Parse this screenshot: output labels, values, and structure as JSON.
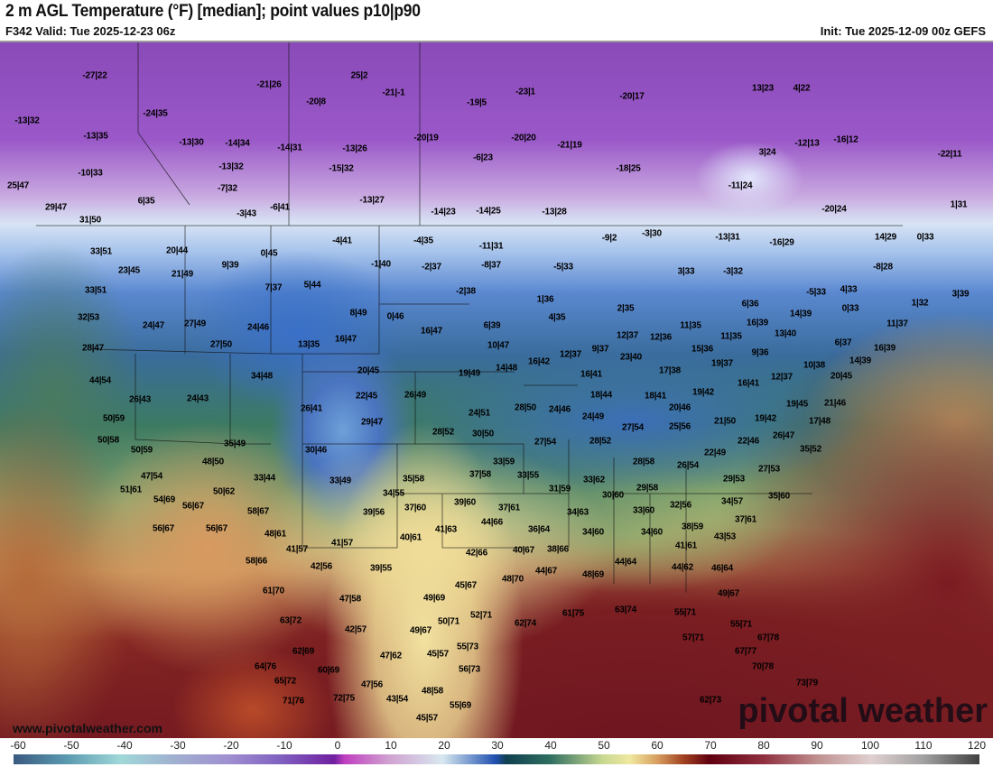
{
  "header": {
    "title": "2 m AGL Temperature (°F) [median]; point values p10|p90",
    "valid": "F342 Valid: Tue 2025-12-23 06z",
    "init": "Init: Tue 2025-12-09 00z GEFS"
  },
  "branding": {
    "url": "www.pivotalweather.com",
    "watermark": "pivotal weather"
  },
  "colorbar": {
    "ticks": [
      "-60",
      "-50",
      "-40",
      "-30",
      "-20",
      "-10",
      "0",
      "10",
      "20",
      "30",
      "40",
      "50",
      "60",
      "70",
      "80",
      "90",
      "100",
      "110",
      "120"
    ]
  },
  "map": {
    "point_values": [
      "-27|22",
      "25|2",
      "-21|26",
      "-21|-1",
      "-23|1",
      "-20|17",
      "13|23",
      "4|22",
      "-20|8",
      "-19|5",
      "-13|32",
      "-24|35",
      "-13|35",
      "-13|30",
      "-14|34",
      "-14|31",
      "-13|26",
      "-20|19",
      "-20|20",
      "-21|19",
      "-12|13",
      "-16|12",
      "-6|23",
      "3|24",
      "-22|11",
      "-10|33",
      "-13|32",
      "-15|32",
      "-18|25",
      "25|47",
      "-7|32",
      "-13|27",
      "-11|24",
      "6|35",
      "29|47",
      "-3|43",
      "-6|41",
      "-14|23",
      "-14|25",
      "-13|28",
      "-20|24",
      "1|31",
      "31|50",
      "-4|41",
      "-4|35",
      "-9|2",
      "-3|30",
      "-13|31",
      "-16|29",
      "14|29",
      "0|33",
      "33|51",
      "20|44",
      "0|45",
      "-11|31",
      "9|39",
      "-1|40",
      "-2|37",
      "-8|37",
      "-5|33",
      "3|33",
      "-3|32",
      "-8|28",
      "23|45",
      "21|49",
      "7|37",
      "5|44",
      "-2|38",
      "-5|33",
      "4|33",
      "3|39",
      "33|51",
      "1|36",
      "6|36",
      "1|32",
      "0|33",
      "8|49",
      "0|46",
      "4|35",
      "2|35",
      "16|39",
      "14|39",
      "11|37",
      "32|53",
      "24|47",
      "27|49",
      "24|46",
      "6|39",
      "11|35",
      "12|37",
      "12|36",
      "11|35",
      "13|40",
      "6|37",
      "28|47",
      "27|50",
      "13|35",
      "16|47",
      "16|47",
      "10|47",
      "12|37",
      "9|37",
      "15|36",
      "9|36",
      "16|39",
      "23|40",
      "19|37",
      "14|39",
      "10|38",
      "44|54",
      "34|48",
      "20|45",
      "19|49",
      "14|48",
      "16|42",
      "16|41",
      "17|38",
      "12|37",
      "20|45",
      "16|41",
      "26|43",
      "24|43",
      "22|45",
      "26|49",
      "18|44",
      "18|41",
      "19|42",
      "21|46",
      "19|45",
      "26|41",
      "28|50",
      "24|46",
      "24|51",
      "20|46",
      "24|49",
      "19|42",
      "21|50",
      "17|48",
      "25|56",
      "50|59",
      "29|47",
      "28|52",
      "30|50",
      "27|54",
      "26|47",
      "50|58",
      "27|54",
      "28|52",
      "22|46",
      "35|49",
      "50|59",
      "30|46",
      "35|52",
      "48|50",
      "33|59",
      "28|58",
      "26|54",
      "22|49",
      "47|54",
      "33|44",
      "33|49",
      "35|58",
      "37|58",
      "33|55",
      "33|62",
      "27|53",
      "29|53",
      "51|61",
      "50|62",
      "34|55",
      "31|59",
      "29|58",
      "35|60",
      "54|69",
      "56|67",
      "39|60",
      "37|61",
      "30|60",
      "32|56",
      "34|57",
      "58|67",
      "39|56",
      "37|60",
      "34|63",
      "33|60",
      "37|61",
      "56|67",
      "56|67",
      "48|61",
      "44|66",
      "41|63",
      "36|64",
      "34|60",
      "38|59",
      "34|60",
      "40|61",
      "41|57",
      "43|53",
      "41|57",
      "42|66",
      "40|67",
      "38|66",
      "41|61",
      "58|66",
      "42|56",
      "39|55",
      "44|64",
      "44|62",
      "46|64",
      "44|67",
      "48|69",
      "48|70",
      "45|67",
      "61|70",
      "47|58",
      "49|69",
      "49|67",
      "52|71",
      "50|71",
      "62|74",
      "61|75",
      "63|74",
      "55|71",
      "55|71",
      "63|72",
      "42|57",
      "49|67",
      "57|71",
      "67|78",
      "62|69",
      "47|62",
      "45|57",
      "55|73",
      "67|77",
      "64|76",
      "60|69",
      "56|73",
      "70|78",
      "65|72",
      "47|56",
      "48|58",
      "73|79",
      "71|76",
      "72|75",
      "43|54",
      "55|69",
      "62|73",
      "45|57"
    ]
  }
}
